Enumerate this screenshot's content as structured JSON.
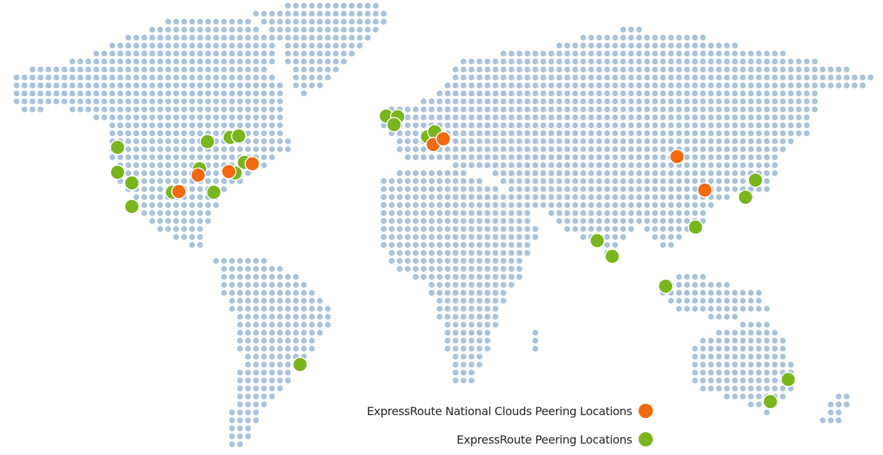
{
  "colors": {
    "land_dot": "#a9c3dd",
    "national": "#f26a10",
    "peering": "#7ab51d"
  },
  "legend": {
    "national_label": "ExpressRoute National Clouds Peering Locations",
    "peering_label": "ExpressRoute Peering Locations"
  }
}
